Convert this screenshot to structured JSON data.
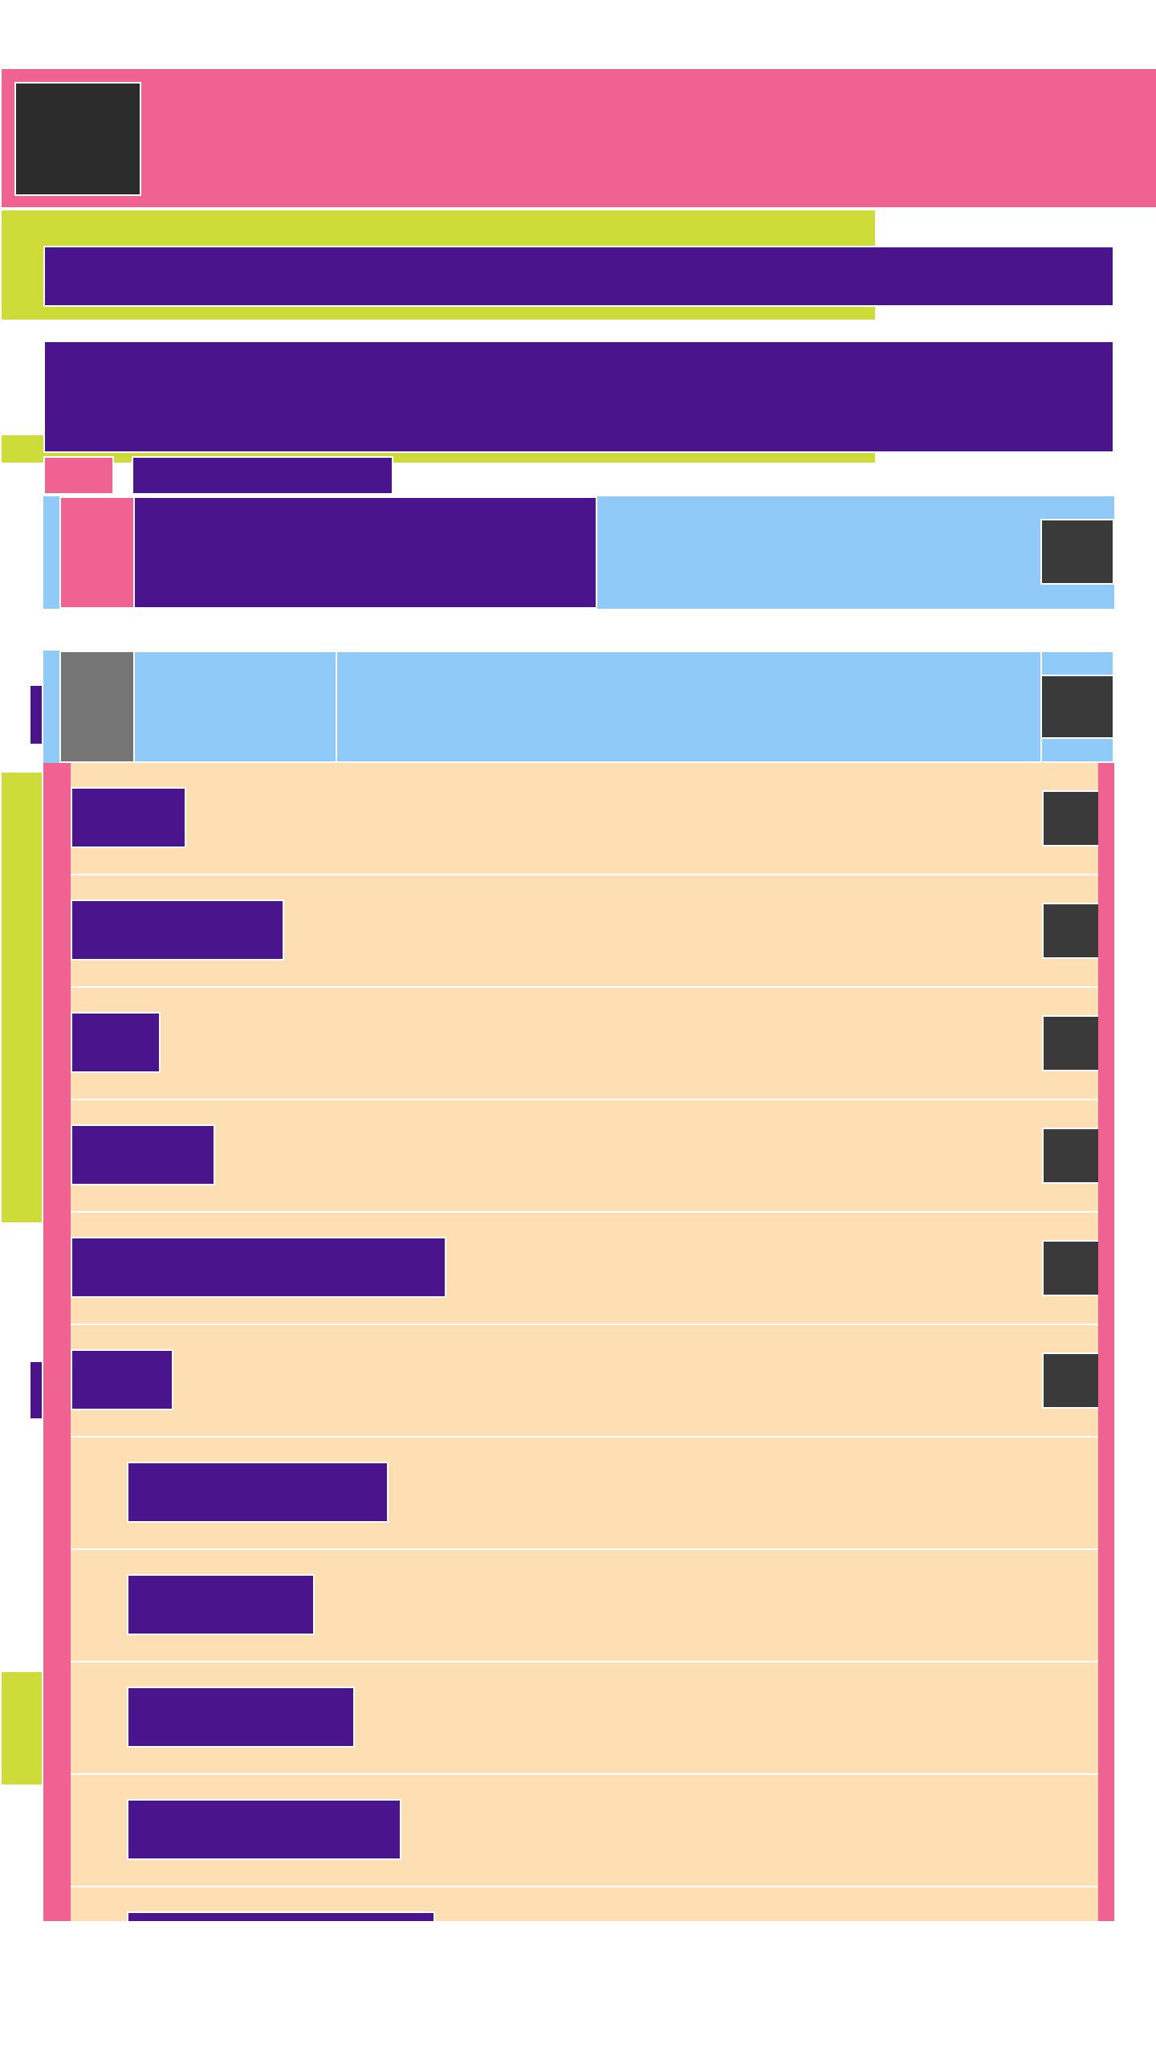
{
  "app": {
    "window_title": "",
    "header_title": ""
  },
  "list": {
    "rows": [
      {
        "label": ""
      },
      {
        "label": ""
      },
      {
        "label": ""
      },
      {
        "label": ""
      },
      {
        "label": ""
      },
      {
        "label": ""
      },
      {
        "label": ""
      },
      {
        "label": ""
      },
      {
        "label": ""
      },
      {
        "label": ""
      },
      {
        "label": ""
      }
    ]
  },
  "colors": {
    "header": "#f06292",
    "accent": "#cddc39",
    "primary": "#4a148c",
    "toolbar": "#90caf9",
    "list_row": "#fddfb3",
    "button": "#3a3a3a",
    "avatar": "#757575"
  }
}
